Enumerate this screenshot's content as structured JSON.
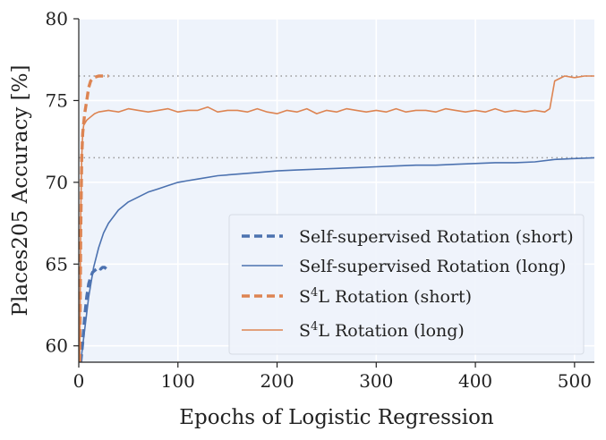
{
  "chart_data": {
    "type": "line",
    "xlabel": "Epochs of Logistic Regression",
    "ylabel": "Places205 Accuracy [%]",
    "xlim": [
      0,
      520
    ],
    "ylim": [
      59,
      80
    ],
    "xticks": [
      0,
      100,
      200,
      300,
      400,
      500
    ],
    "yticks": [
      60,
      65,
      70,
      75,
      80
    ],
    "grid": true,
    "legend_position": "lower-right",
    "reference_lines": [
      76.5,
      71.5
    ],
    "colors": {
      "blue": "#4c72b0",
      "orange": "#dd8452",
      "plot_bg": "#eef3fb",
      "grid": "#ffffff",
      "ref": "#999999"
    },
    "series": [
      {
        "name": "Self-supervised Rotation (short)",
        "color": "#4c72b0",
        "style": "dashed",
        "x": [
          2,
          4,
          6,
          8,
          10,
          12,
          14,
          16,
          18,
          20,
          22,
          24,
          26,
          28,
          30
        ],
        "y": [
          59.0,
          60.2,
          61.8,
          63.0,
          63.8,
          64.2,
          64.5,
          64.6,
          64.7,
          64.8,
          64.7,
          64.8,
          64.8,
          64.7,
          64.8
        ]
      },
      {
        "name": "Self-supervised Rotation (long)",
        "color": "#4c72b0",
        "style": "solid",
        "x": [
          2,
          5,
          10,
          15,
          20,
          25,
          30,
          40,
          50,
          60,
          70,
          80,
          90,
          100,
          110,
          120,
          140,
          160,
          180,
          200,
          220,
          240,
          260,
          280,
          300,
          320,
          340,
          360,
          380,
          400,
          420,
          440,
          460,
          480,
          500,
          520
        ],
        "y": [
          59.0,
          60.5,
          63.0,
          64.8,
          66.0,
          66.9,
          67.5,
          68.3,
          68.8,
          69.1,
          69.4,
          69.6,
          69.8,
          70.0,
          70.1,
          70.2,
          70.4,
          70.5,
          70.6,
          70.7,
          70.75,
          70.8,
          70.85,
          70.9,
          70.95,
          71.0,
          71.05,
          71.05,
          71.1,
          71.15,
          71.2,
          71.2,
          71.25,
          71.4,
          71.45,
          71.5
        ]
      },
      {
        "name": "S4L Rotation (short)",
        "color": "#dd8452",
        "style": "dashed",
        "x": [
          1,
          2,
          3,
          4,
          5,
          6,
          8,
          10,
          12,
          15,
          20,
          25,
          30
        ],
        "y": [
          59.0,
          67.0,
          71.5,
          73.0,
          73.6,
          74.2,
          75.0,
          75.8,
          76.2,
          76.4,
          76.5,
          76.5,
          76.5
        ]
      },
      {
        "name": "S4L Rotation (long)",
        "color": "#dd8452",
        "style": "solid",
        "x": [
          1,
          2,
          3,
          4,
          5,
          8,
          12,
          16,
          20,
          30,
          40,
          50,
          60,
          70,
          80,
          90,
          100,
          110,
          120,
          130,
          140,
          150,
          160,
          170,
          180,
          190,
          200,
          210,
          220,
          230,
          240,
          250,
          260,
          270,
          280,
          290,
          300,
          310,
          320,
          330,
          340,
          350,
          360,
          370,
          380,
          390,
          400,
          410,
          420,
          430,
          440,
          450,
          460,
          470,
          475,
          480,
          490,
          500,
          510,
          520
        ],
        "y": [
          59.0,
          68.0,
          71.5,
          73.0,
          73.5,
          73.8,
          74.0,
          74.2,
          74.3,
          74.4,
          74.3,
          74.5,
          74.4,
          74.3,
          74.4,
          74.5,
          74.3,
          74.4,
          74.4,
          74.6,
          74.3,
          74.4,
          74.4,
          74.3,
          74.5,
          74.3,
          74.2,
          74.4,
          74.3,
          74.5,
          74.2,
          74.4,
          74.3,
          74.5,
          74.4,
          74.3,
          74.4,
          74.3,
          74.5,
          74.3,
          74.4,
          74.4,
          74.3,
          74.5,
          74.4,
          74.3,
          74.4,
          74.3,
          74.5,
          74.3,
          74.4,
          74.3,
          74.4,
          74.3,
          74.5,
          76.2,
          76.5,
          76.4,
          76.5,
          76.5
        ]
      }
    ]
  }
}
